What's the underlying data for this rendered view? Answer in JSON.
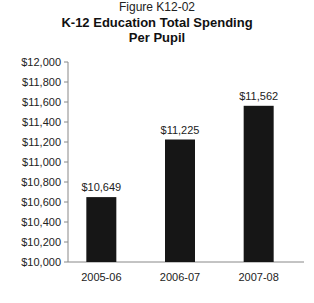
{
  "chart_data": {
    "type": "bar",
    "subtitle": "Figure K12-02",
    "title": [
      "K-12 Education Total Spending",
      "Per Pupil"
    ],
    "categories": [
      "2005-06",
      "2006-07",
      "2007-08"
    ],
    "values": [
      10649,
      11225,
      11562
    ],
    "value_labels": [
      "$10,649",
      "$11,225",
      "$11,562"
    ],
    "data_labels": true,
    "color": "#161616",
    "ylim": [
      10000,
      12000
    ],
    "yticks": [
      {
        "value": 10000,
        "label": "$10,000"
      },
      {
        "value": 10200,
        "label": "$10,200"
      },
      {
        "value": 10400,
        "label": "$10,400"
      },
      {
        "value": 10600,
        "label": "$10,600"
      },
      {
        "value": 10800,
        "label": "$10,800"
      },
      {
        "value": 11000,
        "label": "$11,000"
      },
      {
        "value": 11200,
        "label": "$11,200"
      },
      {
        "value": 11400,
        "label": "$11,400"
      },
      {
        "value": 11600,
        "label": "$11,600"
      },
      {
        "value": 11800,
        "label": "$11,800"
      },
      {
        "value": 12000,
        "label": "$12,000"
      }
    ],
    "grid": false
  }
}
